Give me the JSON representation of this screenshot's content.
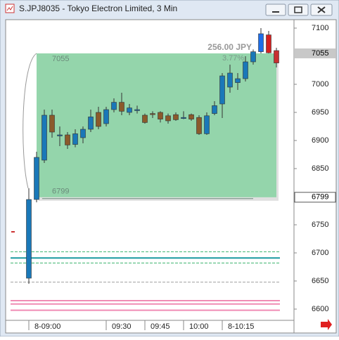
{
  "window": {
    "title": "S.JPJ8035 - Tokyo Electron Limited, 3 Min"
  },
  "chart_data": {
    "type": "candlestick",
    "categories": [
      "8-09:00",
      null,
      null,
      null,
      null,
      null,
      null,
      null,
      null,
      null,
      "09:30",
      null,
      null,
      null,
      null,
      "09:45",
      null,
      null,
      null,
      null,
      "10:00",
      null,
      null,
      null,
      null,
      "8-10:15",
      null,
      null,
      null,
      null,
      null,
      null,
      null
    ],
    "open": [
      6655,
      6795,
      6865,
      6945,
      6910,
      6910,
      6893,
      6905,
      6920,
      6950,
      6930,
      6955,
      6968,
      6950,
      6955,
      6945,
      6948,
      6950,
      6944,
      6946,
      6941,
      6946,
      6941,
      6912,
      6948,
      6965,
      6995,
      7003,
      7010,
      7040,
      7058,
      7088,
      7060
    ],
    "high": [
      6815,
      6880,
      6955,
      6955,
      6925,
      6915,
      6920,
      6925,
      6955,
      6960,
      6960,
      6975,
      6985,
      6965,
      6962,
      6948,
      6952,
      6952,
      6948,
      6950,
      6952,
      6948,
      6945,
      6950,
      6970,
      7020,
      7035,
      7020,
      7050,
      7062,
      7100,
      7095,
      7065
    ],
    "low": [
      6645,
      6790,
      6860,
      6905,
      6890,
      6885,
      6888,
      6895,
      6915,
      6920,
      6925,
      6950,
      6945,
      6945,
      6948,
      6930,
      6940,
      6932,
      6930,
      6935,
      6938,
      6935,
      6910,
      6910,
      6945,
      6940,
      6985,
      6990,
      7005,
      7035,
      7055,
      7055,
      7030
    ],
    "close": [
      6795,
      6870,
      6945,
      6915,
      6910,
      6892,
      6912,
      6920,
      6942,
      6925,
      6955,
      6968,
      6952,
      6958,
      6955,
      6932,
      6947,
      6938,
      6935,
      6937,
      6941,
      6938,
      6912,
      6944,
      6962,
      7015,
      7020,
      7010,
      7040,
      7058,
      7090,
      7056,
      7038
    ],
    "colors": [
      "#1a78b8",
      "#1a78b8",
      "#1a78b8",
      "#8b5a2b",
      "#1a78b8",
      "#8b5a2b",
      "#1a78b8",
      "#1a78b8",
      "#1a78b8",
      "#8b5a2b",
      "#1a78b8",
      "#1a78b8",
      "#8b5a2b",
      "#1a78b8",
      "#1a78b8",
      "#8b5a2b",
      "#8b5a2b",
      "#8b5a2b",
      "#8b5a2b",
      "#8b5a2b",
      "#1a78b8",
      "#8b5a2b",
      "#8b5a2b",
      "#1a78b8",
      "#1a78b8",
      "#1a78b8",
      "#1a78b8",
      "#1a78b8",
      "#1a78b8",
      "#1a78b8",
      "#1e6ee8",
      "#d42020",
      "#c83030"
    ],
    "ylim": [
      6580,
      7115
    ],
    "yticks": [
      7100,
      7000,
      6950,
      6900,
      6850,
      6750,
      6700,
      6650,
      6600
    ],
    "levels": [
      {
        "value": 6702,
        "color": "#3cb46e",
        "dash": true
      },
      {
        "value": 6691,
        "color": "#1a9aa0",
        "dash": false
      },
      {
        "value": 6682,
        "color": "#3cb46e",
        "dash": true
      },
      {
        "value": 6648,
        "color": "#a0a0a0",
        "dash": true
      },
      {
        "value": 6615,
        "color": "#f08cb4",
        "dash": false
      },
      {
        "value": 6609,
        "color": "#f08cb4",
        "dash": false
      },
      {
        "value": 6598,
        "color": "#f08cb4",
        "dash": false
      }
    ],
    "measure": {
      "high": 7055,
      "low": 6799,
      "change": "256.00 JPY",
      "percent": "3.77%",
      "color": "#8fd4a8"
    }
  }
}
